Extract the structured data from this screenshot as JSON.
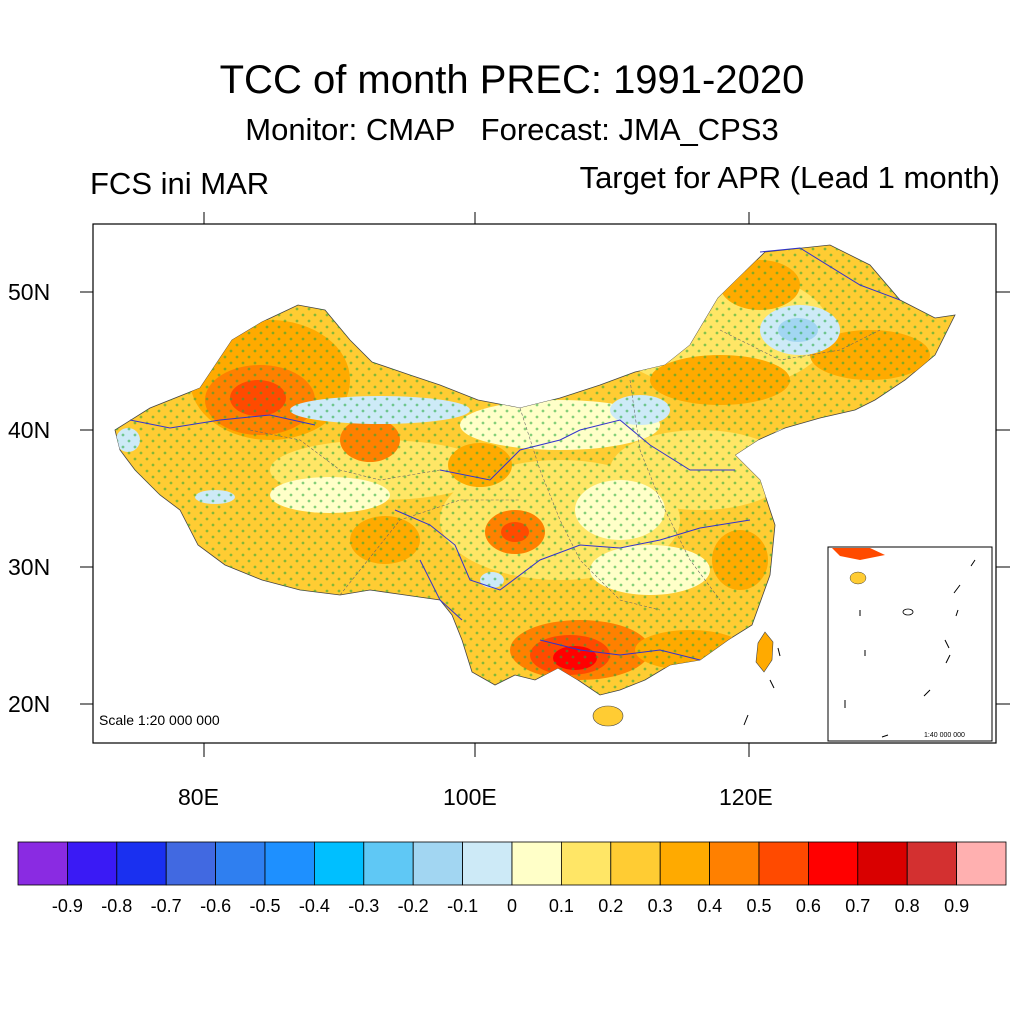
{
  "header": {
    "title": "TCC of month PREC: 1991-2020",
    "subtitle": "Monitor: CMAP   Forecast: JMA_CPS3",
    "left_label": "FCS ini MAR",
    "right_label": "Target for APR (Lead 1 month)"
  },
  "map": {
    "lat_labels": [
      "50N",
      "40N",
      "30N",
      "20N"
    ],
    "lon_labels": [
      "80E",
      "100E",
      "120E"
    ],
    "scale_main": "Scale 1:20 000 000",
    "scale_inset": "1:40 000 000"
  },
  "colorbar": {
    "colors": [
      "#8a2be2",
      "#3a1af5",
      "#1a30f0",
      "#4169e1",
      "#2f7ff0",
      "#1e90ff",
      "#00bfff",
      "#5fc8f5",
      "#a2d6f2",
      "#cdeaf7",
      "#ffffc8",
      "#ffe666",
      "#ffcc33",
      "#ffaa00",
      "#ff8000",
      "#ff4a00",
      "#ff0000",
      "#d90000",
      "#d33030",
      "#ffb0b0"
    ],
    "labels": [
      "-0.9",
      "-0.8",
      "-0.7",
      "-0.6",
      "-0.5",
      "-0.4",
      "-0.3",
      "-0.2",
      "-0.1",
      "0",
      "0.1",
      "0.2",
      "0.3",
      "0.4",
      "0.5",
      "0.6",
      "0.7",
      "0.8",
      "0.9"
    ]
  }
}
